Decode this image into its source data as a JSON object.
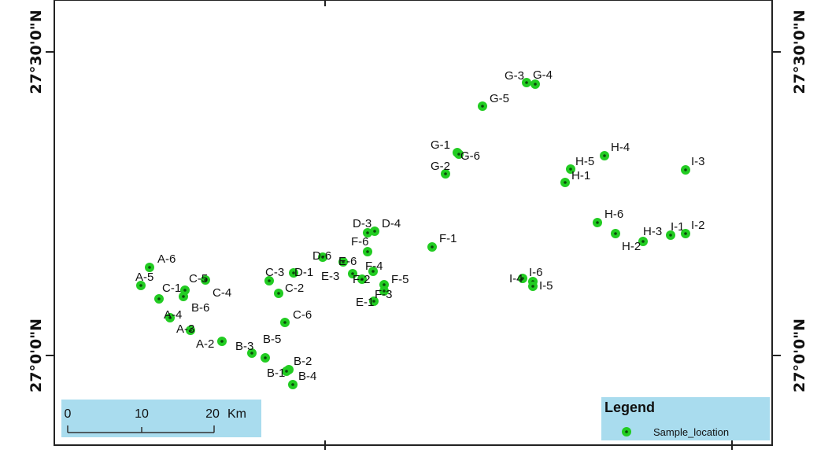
{
  "map": {
    "lat_labels": [
      "27°30'0\"N",
      "27°0'0\"N"
    ],
    "scale_bar": {
      "ticks": [
        "0",
        "10",
        "20"
      ],
      "unit": "Km"
    },
    "legend": {
      "title": "Legend",
      "item_label": "Sample_location",
      "marker_color": "#22cc22",
      "box_color": "#a9dcee"
    },
    "point_color": "#22cc22",
    "samples": [
      {
        "id": "A-6"
      },
      {
        "id": "A-5"
      },
      {
        "id": "C-1"
      },
      {
        "id": "C-5"
      },
      {
        "id": "C-4"
      },
      {
        "id": "B-6"
      },
      {
        "id": "A-4"
      },
      {
        "id": "A-3"
      },
      {
        "id": "A-2"
      },
      {
        "id": "C-3"
      },
      {
        "id": "D-1"
      },
      {
        "id": "C-2"
      },
      {
        "id": "C-6"
      },
      {
        "id": "B-3"
      },
      {
        "id": "B-5"
      },
      {
        "id": "B-2"
      },
      {
        "id": "B-1"
      },
      {
        "id": "B-4"
      },
      {
        "id": "D-3"
      },
      {
        "id": "D-4"
      },
      {
        "id": "F-6"
      },
      {
        "id": "D-6"
      },
      {
        "id": "E-6"
      },
      {
        "id": "E-3"
      },
      {
        "id": "F-4"
      },
      {
        "id": "F-2"
      },
      {
        "id": "F-5"
      },
      {
        "id": "E-1"
      },
      {
        "id": "F-3"
      },
      {
        "id": "F-1"
      },
      {
        "id": "G-1"
      },
      {
        "id": "G-6"
      },
      {
        "id": "G-2"
      },
      {
        "id": "G-5"
      },
      {
        "id": "G-3"
      },
      {
        "id": "G-4"
      },
      {
        "id": "H-4"
      },
      {
        "id": "H-5"
      },
      {
        "id": "H-1"
      },
      {
        "id": "I-3"
      },
      {
        "id": "H-6"
      },
      {
        "id": "H-3"
      },
      {
        "id": "I-1"
      },
      {
        "id": "I-2"
      },
      {
        "id": "H-2"
      },
      {
        "id": "I-6"
      },
      {
        "id": "I-4"
      },
      {
        "id": "I-5"
      }
    ]
  }
}
